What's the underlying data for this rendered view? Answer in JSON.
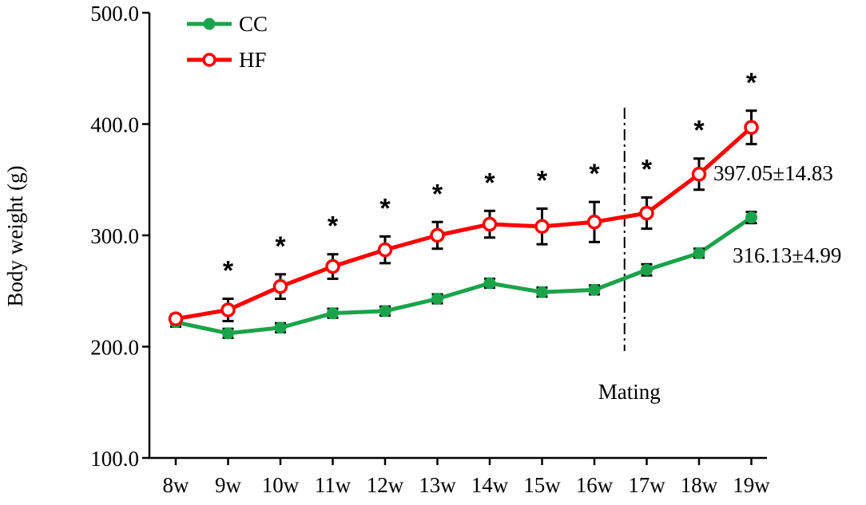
{
  "chart_data": {
    "type": "line",
    "title": "",
    "xlabel": "",
    "ylabel": "Body weight (g)",
    "ylim": [
      100,
      500
    ],
    "yticks": [
      100,
      200,
      300,
      400,
      500
    ],
    "ytick_labels": [
      "100.0",
      "200.0",
      "300.0",
      "400.0",
      "500.0"
    ],
    "categories": [
      "8w",
      "9w",
      "10w",
      "11w",
      "12w",
      "13w",
      "14w",
      "15w",
      "16w",
      "17w",
      "18w",
      "19w"
    ],
    "series": [
      {
        "name": "CC",
        "color": "#1aa34a",
        "marker": "filled-circle",
        "values": [
          222,
          212,
          217,
          230,
          232,
          243,
          257,
          249,
          251,
          269,
          284,
          316
        ],
        "errors": [
          4,
          4,
          4,
          4,
          4,
          4,
          4,
          4,
          4,
          5,
          4,
          5
        ]
      },
      {
        "name": "HF",
        "color": "#ff0000",
        "marker": "open-circle",
        "values": [
          225,
          233,
          254,
          272,
          287,
          300,
          310,
          308,
          312,
          320,
          355,
          397
        ],
        "errors": [
          4,
          10,
          11,
          11,
          12,
          12,
          12,
          16,
          18,
          14,
          14,
          15
        ]
      }
    ],
    "significance_markers": [
      {
        "category": "9w",
        "label": "*"
      },
      {
        "category": "10w",
        "label": "*"
      },
      {
        "category": "11w",
        "label": "*"
      },
      {
        "category": "12w",
        "label": "*"
      },
      {
        "category": "13w",
        "label": "*"
      },
      {
        "category": "14w",
        "label": "*"
      },
      {
        "category": "15w",
        "label": "*"
      },
      {
        "category": "16w",
        "label": "*"
      },
      {
        "category": "17w",
        "label": "*"
      },
      {
        "category": "18w",
        "label": "*"
      },
      {
        "category": "19w",
        "label": "*"
      }
    ],
    "vline": {
      "position_between": [
        "16w",
        "17w"
      ],
      "label": "Mating"
    },
    "annotations": {
      "hf_final": "397.05±14.83",
      "cc_final": "316.13±4.99"
    },
    "legend": {
      "placement": "top-left"
    }
  }
}
